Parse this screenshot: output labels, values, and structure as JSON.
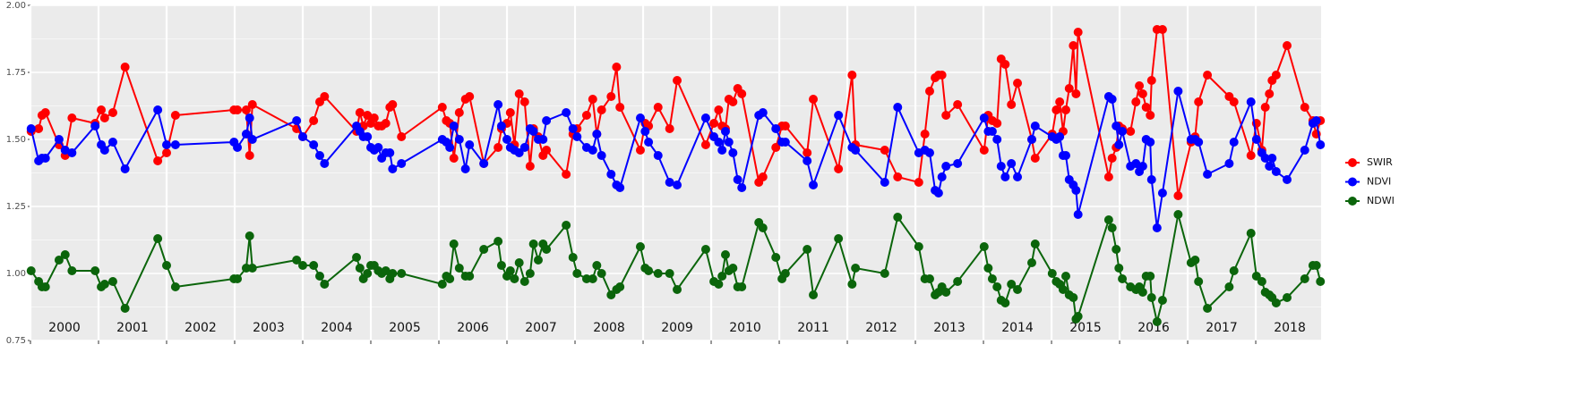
{
  "chart_data": {
    "type": "line",
    "x": [
      2000.01,
      2000.12,
      2000.17,
      2000.22,
      2000.42,
      2000.51,
      2000.61,
      2000.95,
      2001.04,
      2001.09,
      2001.21,
      2001.39,
      2001.87,
      2002.0,
      2002.13,
      2002.99,
      2003.04,
      2003.17,
      2003.22,
      2003.26,
      2003.91,
      2004.0,
      2004.16,
      2004.25,
      2004.32,
      2004.79,
      2004.84,
      2004.89,
      2004.95,
      2005.0,
      2005.05,
      2005.11,
      2005.16,
      2005.22,
      2005.28,
      2005.32,
      2005.45,
      2006.05,
      2006.11,
      2006.16,
      2006.22,
      2006.3,
      2006.39,
      2006.45,
      2006.66,
      2006.87,
      2006.92,
      2007.0,
      2007.05,
      2007.11,
      2007.18,
      2007.26,
      2007.34,
      2007.39,
      2007.46,
      2007.53,
      2007.58,
      2007.87,
      2007.97,
      2008.03,
      2008.17,
      2008.26,
      2008.32,
      2008.39,
      2008.53,
      2008.61,
      2008.66,
      2008.96,
      2009.03,
      2009.08,
      2009.22,
      2009.39,
      2009.5,
      2009.92,
      2010.04,
      2010.11,
      2010.16,
      2010.21,
      2010.26,
      2010.32,
      2010.39,
      2010.45,
      2010.7,
      2010.76,
      2010.95,
      2011.04,
      2011.09,
      2011.41,
      2011.5,
      2011.87,
      2012.07,
      2012.12,
      2012.55,
      2012.74,
      2013.05,
      2013.14,
      2013.21,
      2013.29,
      2013.34,
      2013.39,
      2013.45,
      2013.62,
      2014.01,
      2014.07,
      2014.13,
      2014.2,
      2014.26,
      2014.32,
      2014.41,
      2014.5,
      2014.71,
      2014.76,
      2015.01,
      2015.07,
      2015.12,
      2015.17,
      2015.21,
      2015.26,
      2015.32,
      2015.36,
      2015.39,
      2015.84,
      2015.89,
      2015.95,
      2015.99,
      2016.04,
      2016.16,
      2016.24,
      2016.29,
      2016.34,
      2016.39,
      2016.45,
      2016.47,
      2016.55,
      2016.63,
      2016.86,
      2017.05,
      2017.11,
      2017.16,
      2017.29,
      2017.61,
      2017.68,
      2017.93,
      2018.01,
      2018.09,
      2018.14,
      2018.2,
      2018.24,
      2018.3,
      2018.46,
      2018.72,
      2018.84,
      2018.89,
      2018.95
    ],
    "series": [
      {
        "name": "SWIR",
        "color": "#ff0000",
        "values": [
          1.53,
          1.54,
          1.59,
          1.6,
          1.48,
          1.44,
          1.58,
          1.56,
          1.61,
          1.58,
          1.6,
          1.77,
          1.42,
          1.45,
          1.59,
          1.61,
          1.61,
          1.61,
          1.44,
          1.63,
          1.54,
          1.51,
          1.57,
          1.64,
          1.66,
          1.53,
          1.6,
          1.55,
          1.59,
          1.56,
          1.58,
          1.55,
          1.55,
          1.56,
          1.62,
          1.63,
          1.51,
          1.62,
          1.57,
          1.56,
          1.43,
          1.6,
          1.65,
          1.66,
          1.41,
          1.47,
          1.54,
          1.56,
          1.6,
          1.48,
          1.67,
          1.64,
          1.4,
          1.54,
          1.51,
          1.44,
          1.46,
          1.37,
          1.52,
          1.54,
          1.59,
          1.65,
          1.52,
          1.61,
          1.66,
          1.77,
          1.62,
          1.46,
          1.56,
          1.55,
          1.62,
          1.54,
          1.72,
          1.48,
          1.56,
          1.61,
          1.55,
          1.54,
          1.65,
          1.64,
          1.69,
          1.67,
          1.34,
          1.36,
          1.47,
          1.55,
          1.55,
          1.45,
          1.65,
          1.39,
          1.74,
          1.48,
          1.46,
          1.36,
          1.34,
          1.52,
          1.68,
          1.73,
          1.74,
          1.74,
          1.59,
          1.63,
          1.46,
          1.59,
          1.57,
          1.56,
          1.8,
          1.78,
          1.63,
          1.71,
          1.5,
          1.43,
          1.52,
          1.61,
          1.64,
          1.53,
          1.61,
          1.69,
          1.85,
          1.67,
          1.9,
          1.36,
          1.43,
          1.47,
          1.55,
          1.54,
          1.53,
          1.64,
          1.7,
          1.67,
          1.62,
          1.59,
          1.72,
          1.91,
          1.91,
          1.29,
          1.49,
          1.51,
          1.64,
          1.74,
          1.66,
          1.64,
          1.44,
          1.56,
          1.46,
          1.62,
          1.67,
          1.72,
          1.74,
          1.85,
          1.62,
          1.57,
          1.52,
          1.57
        ]
      },
      {
        "name": "NDVI",
        "color": "#0000ff",
        "values": [
          1.54,
          1.42,
          1.43,
          1.43,
          1.5,
          1.46,
          1.45,
          1.55,
          1.48,
          1.46,
          1.49,
          1.39,
          1.61,
          1.48,
          1.48,
          1.49,
          1.47,
          1.52,
          1.58,
          1.5,
          1.57,
          1.51,
          1.48,
          1.44,
          1.41,
          1.55,
          1.53,
          1.51,
          1.51,
          1.47,
          1.46,
          1.47,
          1.43,
          1.45,
          1.45,
          1.39,
          1.41,
          1.5,
          1.49,
          1.47,
          1.55,
          1.5,
          1.39,
          1.48,
          1.41,
          1.63,
          1.55,
          1.5,
          1.47,
          1.46,
          1.45,
          1.47,
          1.54,
          1.53,
          1.5,
          1.5,
          1.57,
          1.6,
          1.54,
          1.51,
          1.47,
          1.46,
          1.52,
          1.44,
          1.37,
          1.33,
          1.32,
          1.58,
          1.53,
          1.49,
          1.44,
          1.34,
          1.33,
          1.58,
          1.51,
          1.49,
          1.46,
          1.53,
          1.49,
          1.45,
          1.35,
          1.32,
          1.59,
          1.6,
          1.54,
          1.49,
          1.49,
          1.42,
          1.33,
          1.59,
          1.47,
          1.46,
          1.34,
          1.62,
          1.45,
          1.46,
          1.45,
          1.31,
          1.3,
          1.36,
          1.4,
          1.41,
          1.58,
          1.53,
          1.53,
          1.5,
          1.4,
          1.36,
          1.41,
          1.36,
          1.5,
          1.55,
          1.51,
          1.5,
          1.51,
          1.44,
          1.44,
          1.35,
          1.33,
          1.31,
          1.22,
          1.66,
          1.65,
          1.55,
          1.48,
          1.53,
          1.4,
          1.41,
          1.38,
          1.4,
          1.5,
          1.49,
          1.35,
          1.17,
          1.3,
          1.68,
          1.5,
          1.5,
          1.49,
          1.37,
          1.41,
          1.49,
          1.64,
          1.5,
          1.45,
          1.43,
          1.4,
          1.43,
          1.38,
          1.35,
          1.46,
          1.56,
          1.57,
          1.48
        ]
      },
      {
        "name": "NDWI",
        "color": "#0b650b",
        "values": [
          1.01,
          0.97,
          0.95,
          0.95,
          1.05,
          1.07,
          1.01,
          1.01,
          0.95,
          0.96,
          0.97,
          0.87,
          1.13,
          1.03,
          0.95,
          0.98,
          0.98,
          1.02,
          1.14,
          1.02,
          1.05,
          1.03,
          1.03,
          0.99,
          0.96,
          1.06,
          1.02,
          0.98,
          1.0,
          1.03,
          1.03,
          1.01,
          1.0,
          1.01,
          0.98,
          1.0,
          1.0,
          0.96,
          0.99,
          0.98,
          1.11,
          1.02,
          0.99,
          0.99,
          1.09,
          1.12,
          1.03,
          0.99,
          1.01,
          0.98,
          1.04,
          0.97,
          1.0,
          1.11,
          1.05,
          1.11,
          1.09,
          1.18,
          1.06,
          1.0,
          0.98,
          0.98,
          1.03,
          1.0,
          0.92,
          0.94,
          0.95,
          1.1,
          1.02,
          1.01,
          1.0,
          1.0,
          0.94,
          1.09,
          0.97,
          0.96,
          0.99,
          1.07,
          1.01,
          1.02,
          0.95,
          0.95,
          1.19,
          1.17,
          1.06,
          0.98,
          1.0,
          1.09,
          0.92,
          1.13,
          0.96,
          1.02,
          1.0,
          1.21,
          1.1,
          0.98,
          0.98,
          0.92,
          0.93,
          0.95,
          0.93,
          0.97,
          1.1,
          1.02,
          0.98,
          0.95,
          0.9,
          0.89,
          0.96,
          0.94,
          1.04,
          1.11,
          1.0,
          0.97,
          0.96,
          0.94,
          0.99,
          0.92,
          0.91,
          0.83,
          0.84,
          1.2,
          1.17,
          1.09,
          1.02,
          0.98,
          0.95,
          0.94,
          0.95,
          0.93,
          0.99,
          0.99,
          0.91,
          0.82,
          0.9,
          1.22,
          1.04,
          1.05,
          0.97,
          0.87,
          0.95,
          1.01,
          1.15,
          0.99,
          0.97,
          0.93,
          0.92,
          0.91,
          0.89,
          0.91,
          0.98,
          1.03,
          1.03,
          0.97
        ]
      }
    ],
    "xlim": [
      2000,
      2018.96
    ],
    "xticks": [
      {
        "value": 2000,
        "label": "2000"
      },
      {
        "value": 2001,
        "label": "2001"
      },
      {
        "value": 2002,
        "label": "2002"
      },
      {
        "value": 2003,
        "label": "2003"
      },
      {
        "value": 2004,
        "label": "2004"
      },
      {
        "value": 2005,
        "label": "2005"
      },
      {
        "value": 2006,
        "label": "2006"
      },
      {
        "value": 2007,
        "label": "2007"
      },
      {
        "value": 2008,
        "label": "2008"
      },
      {
        "value": 2009,
        "label": "2009"
      },
      {
        "value": 2010,
        "label": "2010"
      },
      {
        "value": 2011,
        "label": "2011"
      },
      {
        "value": 2012,
        "label": "2012"
      },
      {
        "value": 2013,
        "label": "2013"
      },
      {
        "value": 2014,
        "label": "2014"
      },
      {
        "value": 2015,
        "label": "2015"
      },
      {
        "value": 2016,
        "label": "2016"
      },
      {
        "value": 2017,
        "label": "2017"
      },
      {
        "value": 2018,
        "label": "2018"
      }
    ],
    "ylim": [
      0.75,
      2.0
    ],
    "yticks": [
      {
        "value": 0.75,
        "label": "0.75"
      },
      {
        "value": 1.0,
        "label": "1.00"
      },
      {
        "value": 1.25,
        "label": "1.25"
      },
      {
        "value": 1.5,
        "label": "1.50"
      },
      {
        "value": 1.75,
        "label": "1.75"
      },
      {
        "value": 2.0,
        "label": "2.00"
      }
    ],
    "grid": true,
    "legend": "right"
  }
}
